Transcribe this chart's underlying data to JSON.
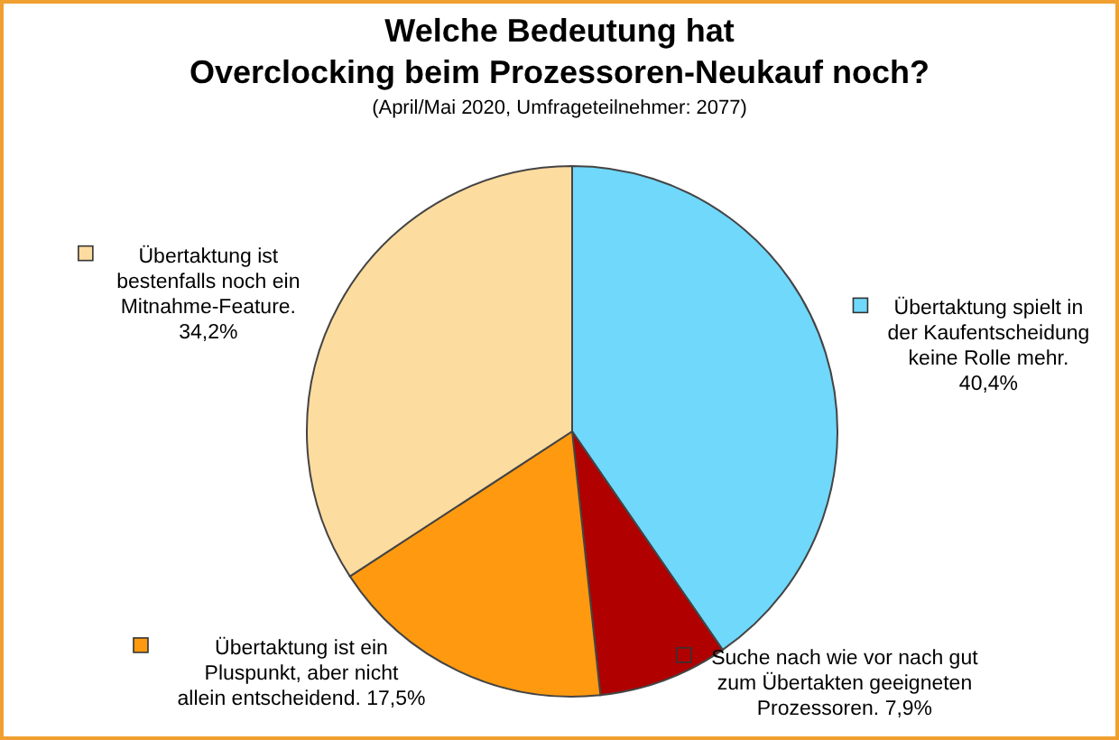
{
  "chart_data": {
    "type": "pie",
    "title": "Welche Bedeutung hat\nOverclocking beim Prozessoren-Neukauf noch?",
    "subtitle": "(April/Mai 2020, Umfrageteilnehmer: 2077)",
    "categories": [
      "Übertaktung spielt in der Kaufentscheidung keine Rolle mehr.",
      "Suche nach wie vor nach gut zum Übertakten geeigneten Prozessoren.",
      "Übertaktung ist ein Pluspunkt, aber nicht allein entscheidend.",
      "Übertaktung ist bestenfalls noch ein Mitnahme-Feature."
    ],
    "values": [
      40.4,
      7.9,
      17.5,
      34.2
    ],
    "value_labels": [
      "40,4%",
      "7,9%",
      "17,5%",
      "34,2%"
    ],
    "colors": [
      "#6fd8fb",
      "#b00000",
      "#ff9a10",
      "#fddca0"
    ],
    "legend": "right"
  }
}
